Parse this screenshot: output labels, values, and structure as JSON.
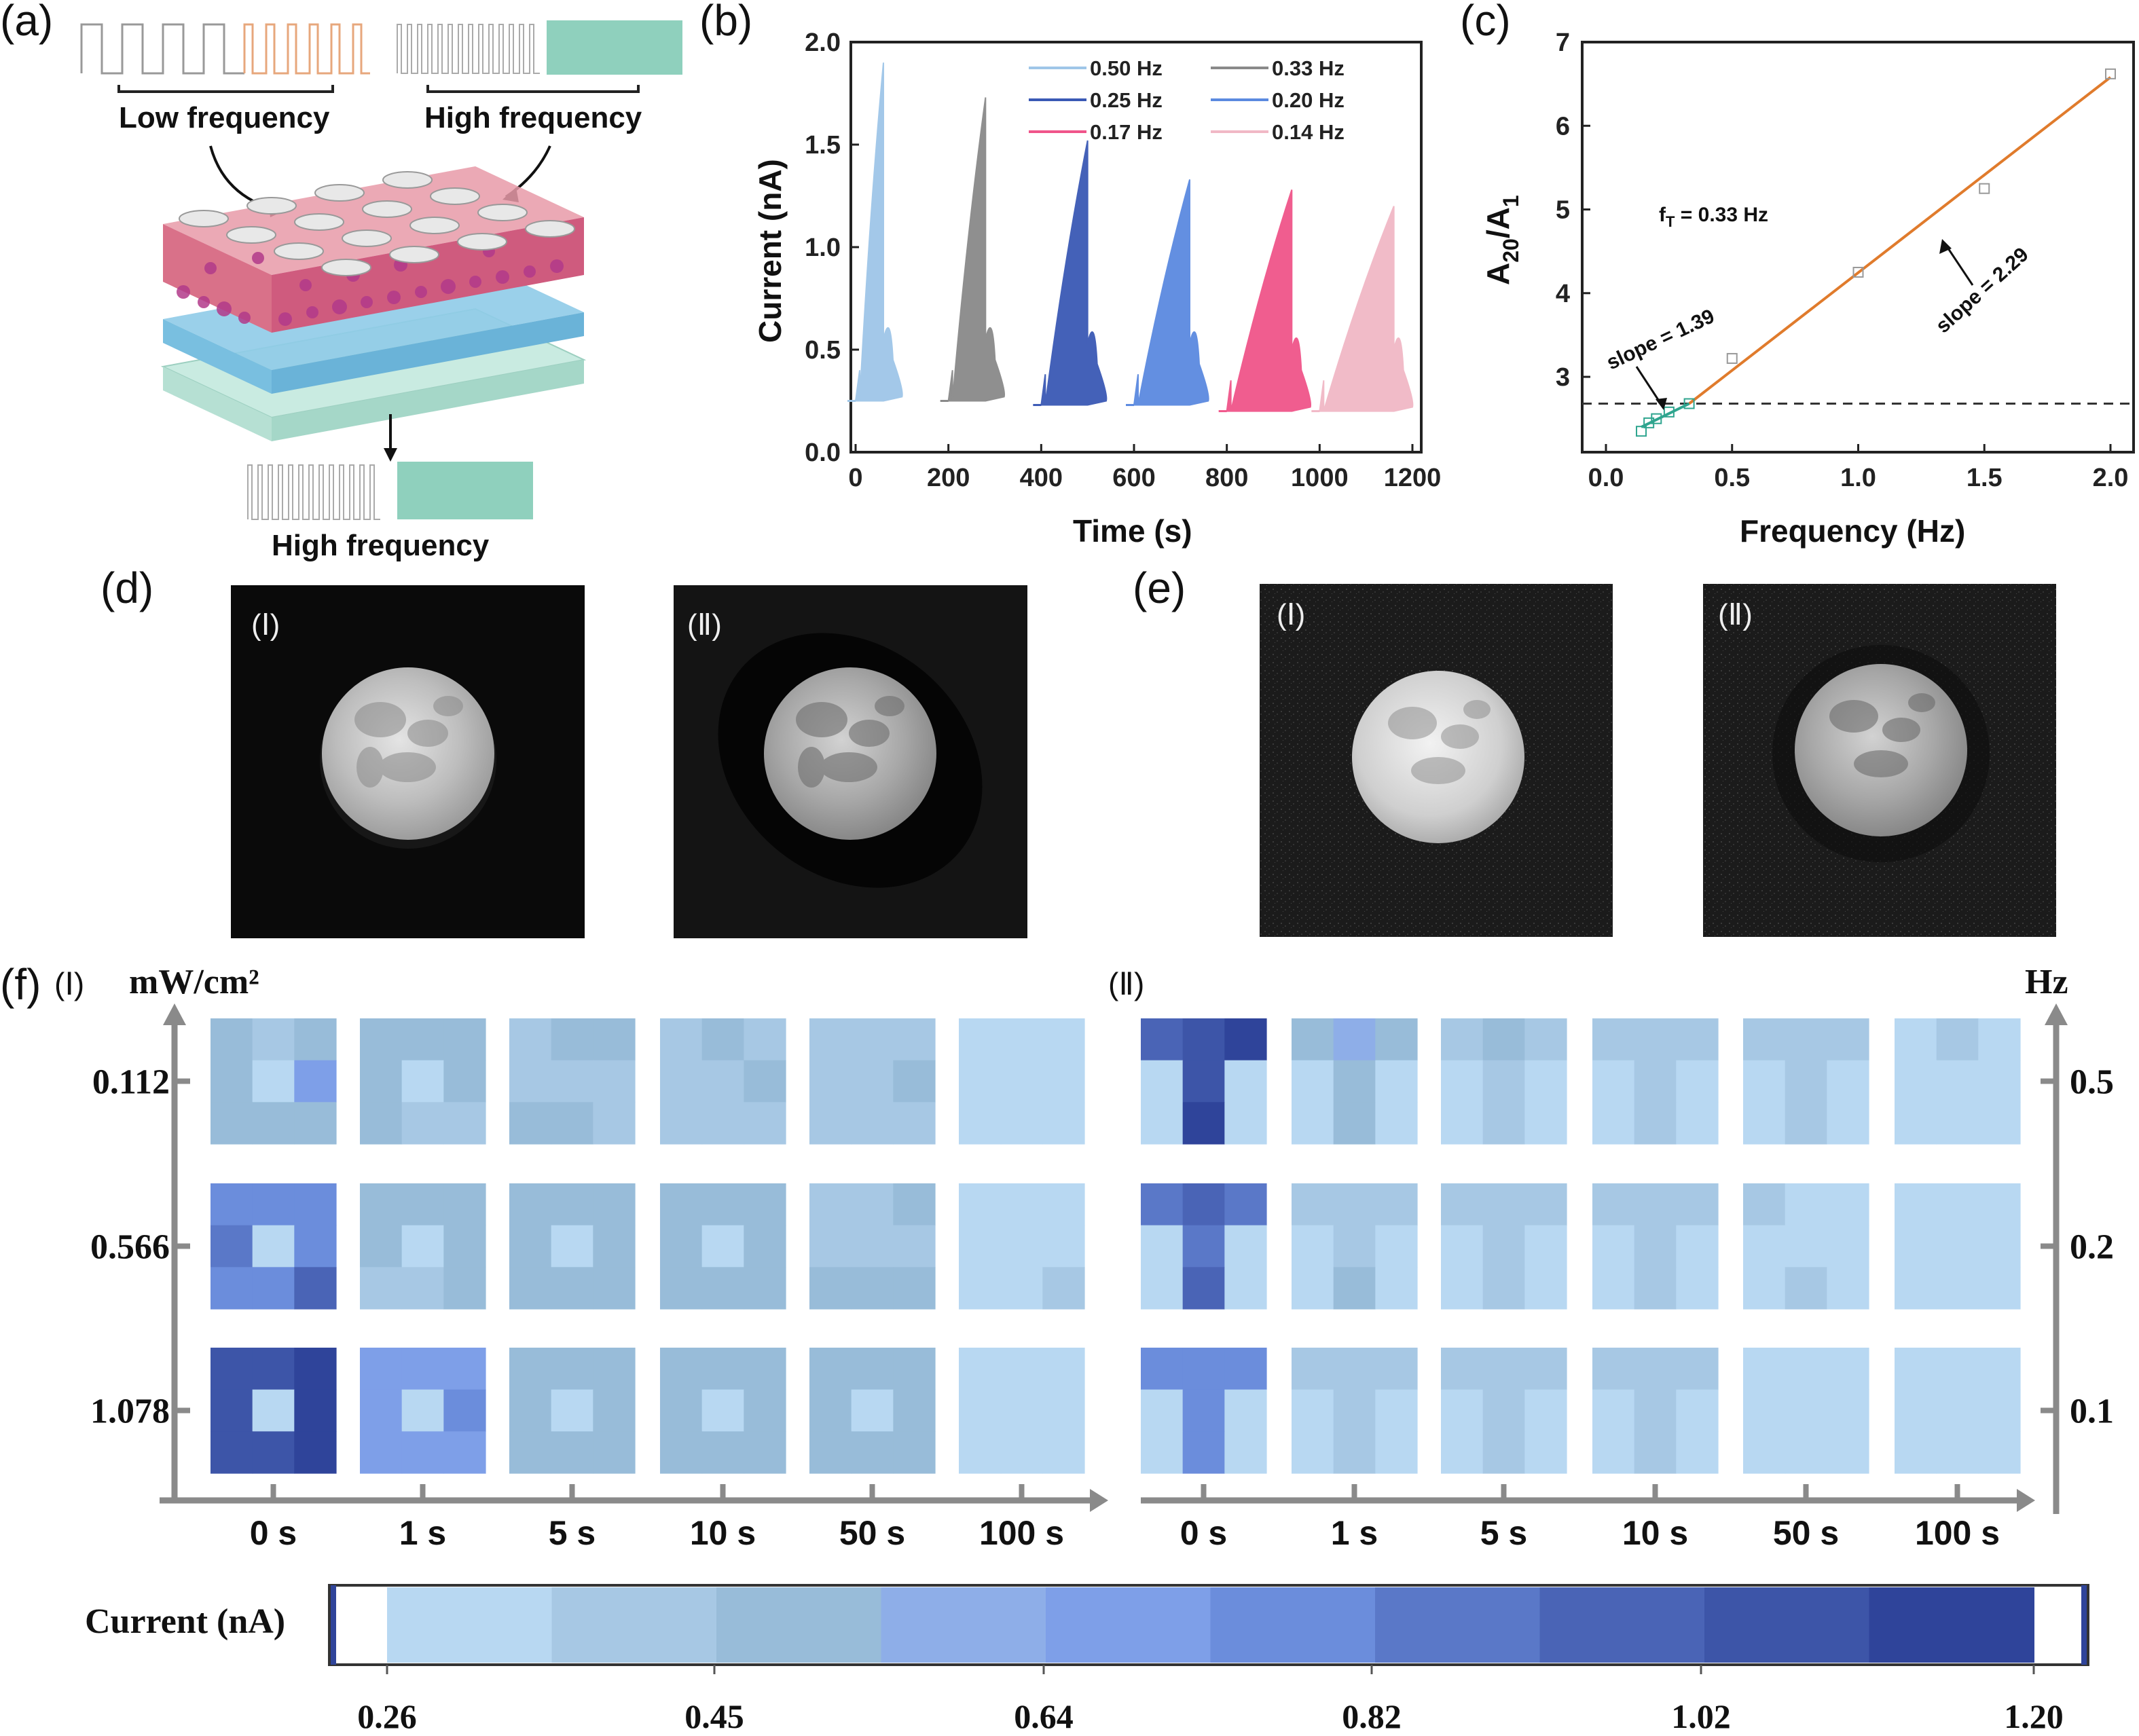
{
  "panels": {
    "a": {
      "label": "(a)",
      "low_frequency": "Low frequency",
      "high_frequency_top": "High frequency",
      "high_frequency_bottom": "High frequency"
    },
    "b": {
      "label": "(b)",
      "chart_data": {
        "type": "line",
        "xlabel": "Time (s)",
        "ylabel": "Current (nA)",
        "xlim": [
          0,
          1200
        ],
        "ylim": [
          0,
          2.0
        ],
        "xticks": [
          "0",
          "200",
          "400",
          "600",
          "800",
          "1000",
          "1200"
        ],
        "yticks": [
          "0.0",
          "0.5",
          "1.0",
          "1.5",
          "2.0"
        ],
        "legend_position": "top-right",
        "series": [
          {
            "name": "0.50 Hz",
            "color": "#9fc6e8",
            "start": 0,
            "end": 60,
            "baseline": 0.25,
            "peak": 1.9
          },
          {
            "name": "0.33 Hz",
            "color": "#8a8a8a",
            "start": 200,
            "end": 280,
            "baseline": 0.25,
            "peak": 1.73
          },
          {
            "name": "0.25 Hz",
            "color": "#3a59b5",
            "start": 400,
            "end": 500,
            "baseline": 0.23,
            "peak": 1.52
          },
          {
            "name": "0.20 Hz",
            "color": "#5b8ae0",
            "start": 600,
            "end": 720,
            "baseline": 0.23,
            "peak": 1.33
          },
          {
            "name": "0.17 Hz",
            "color": "#f0558a",
            "start": 800,
            "end": 940,
            "baseline": 0.2,
            "peak": 1.28
          },
          {
            "name": "0.14 Hz",
            "color": "#f1b8c6",
            "start": 1000,
            "end": 1160,
            "baseline": 0.2,
            "peak": 1.2
          }
        ]
      }
    },
    "c": {
      "label": "(c)",
      "chart_data": {
        "type": "scatter",
        "xlabel": "Frequency (Hz)",
        "ylabel_main": "A",
        "ylabel_sub1": "20",
        "ylabel_slash": "/A",
        "ylabel_sub2": "1",
        "xlim": [
          -0.05,
          2.05
        ],
        "ylim": [
          2.1,
          7
        ],
        "xticks": [
          "0.0",
          "0.5",
          "1.0",
          "1.5",
          "2.0"
        ],
        "yticks": [
          "3",
          "4",
          "5",
          "6",
          "7"
        ],
        "points": [
          {
            "x": 0.14,
            "y": 2.35
          },
          {
            "x": 0.17,
            "y": 2.45
          },
          {
            "x": 0.2,
            "y": 2.5
          },
          {
            "x": 0.25,
            "y": 2.58
          },
          {
            "x": 0.33,
            "y": 2.68
          },
          {
            "x": 0.5,
            "y": 3.22
          },
          {
            "x": 1.0,
            "y": 4.25
          },
          {
            "x": 1.5,
            "y": 5.25
          },
          {
            "x": 2.0,
            "y": 6.62
          }
        ],
        "fit_low": {
          "x": [
            0.14,
            0.33
          ],
          "y": [
            2.4,
            2.68
          ],
          "color": "#2fa58f"
        },
        "fit_high": {
          "x": [
            0.33,
            2.0
          ],
          "y": [
            2.68,
            6.58
          ],
          "color": "#e07b2c"
        },
        "threshold_y": 2.68,
        "annotation_ft": "f",
        "annotation_ft_sub": "T",
        "annotation_ft_rest": " = 0.33 Hz",
        "annotation_low": "slope = 1.39",
        "annotation_high": "slope = 2.29"
      }
    },
    "d": {
      "label": "(d)",
      "sub1": "(Ⅰ)",
      "sub2": "(Ⅱ)"
    },
    "e": {
      "label": "(e)",
      "sub1": "(Ⅰ)",
      "sub2": "(Ⅱ)"
    },
    "f": {
      "label": "(f)",
      "sub1": "(Ⅰ)",
      "sub2": "(Ⅱ)",
      "left_unit": "mW/cm²",
      "right_unit": "Hz",
      "left_rows": [
        "0.112",
        "0.566",
        "1.078"
      ],
      "right_rows": [
        "0.5",
        "0.2",
        "0.1"
      ],
      "columns": [
        "0 s",
        "1 s",
        "5 s",
        "10 s",
        "50 s",
        "100 s"
      ],
      "colorbar_title": "Current (nA)",
      "colorbar_ticks": [
        "0.26",
        "0.45",
        "0.64",
        "0.82",
        "1.02",
        "1.20"
      ],
      "colorbar_colors": [
        "#b8d8f2",
        "#a7c8e4",
        "#98bcd9",
        "#8eaee8",
        "#7e9fe8",
        "#6b8ddc",
        "#5a78c8",
        "#4a64b6",
        "#3d55a8",
        "#2f449a"
      ]
    }
  }
}
